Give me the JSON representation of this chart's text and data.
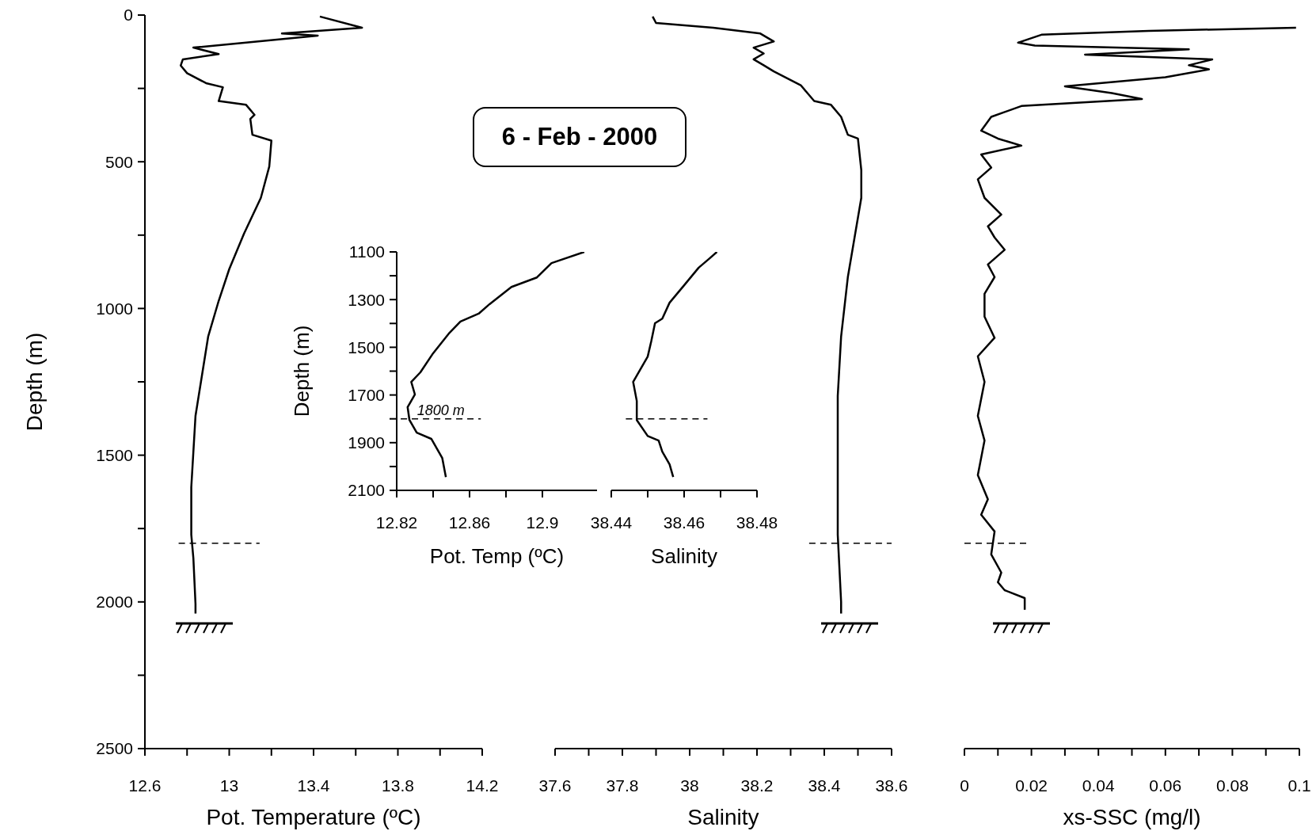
{
  "chart_data": [
    {
      "type": "line",
      "xlabel": "Pot. Temperature (ºC)",
      "ylabel": "Depth (m)",
      "xlim": [
        12.6,
        14.2
      ],
      "xticks": [
        12.6,
        {
          "value": 12.8,
          "label": null
        },
        13,
        {
          "value": 13.2,
          "label": null
        },
        13.4,
        {
          "value": 13.6,
          "label": null
        },
        13.8,
        {
          "value": 14,
          "label": null
        },
        14.2
      ],
      "ylim": [
        2500,
        0
      ],
      "yticks": [
        0,
        {
          "value": 250,
          "label": null
        },
        500,
        {
          "value": 750,
          "label": null
        },
        1000,
        {
          "value": 1250,
          "label": null
        },
        1500,
        {
          "value": 1750,
          "label": null
        },
        2000,
        {
          "value": 2250,
          "label": null
        },
        2500
      ],
      "marker": "none",
      "series": [
        {
          "color": "#000000",
          "x": [
            13.43,
            13.63,
            13.25,
            13.42,
            12.83,
            12.95,
            12.78,
            12.77,
            12.8,
            12.89,
            12.97,
            12.95,
            13.08,
            13.12,
            13.1,
            13.11,
            13.2,
            13.19,
            13.15,
            13.07,
            13.0,
            12.95,
            12.9,
            12.87,
            12.84,
            12.82,
            12.82,
            12.83,
            12.84,
            12.84
          ],
          "values": [
            5,
            43,
            63,
            70,
            111,
            133,
            151,
            172,
            198,
            232,
            246,
            293,
            306,
            340,
            354,
            408,
            428,
            516,
            623,
            745,
            866,
            974,
            1096,
            1231,
            1366,
            1609,
            1771,
            1852,
            2007,
            2040
          ]
        }
      ],
      "ref_lines": [
        {
          "axis": "y",
          "value": 1800,
          "line_style": "dashed"
        }
      ]
    },
    {
      "type": "line",
      "title": "6 - Feb - 2000",
      "xlabel": "Salinity",
      "xlim": [
        37.6,
        38.6
      ],
      "xticks": [
        37.6,
        {
          "value": 37.7,
          "label": null
        },
        37.8,
        {
          "value": 37.9,
          "label": null
        },
        38,
        {
          "value": 38.1,
          "label": null
        },
        38.2,
        {
          "value": 38.3,
          "label": null
        },
        38.4,
        {
          "value": 38.5,
          "label": null
        },
        38.6
      ],
      "ylim": [
        2500,
        0
      ],
      "tick_labels": "x",
      "marker": "none",
      "series": [
        {
          "color": "#000000",
          "x": [
            37.89,
            37.9,
            38.07,
            38.21,
            38.25,
            38.19,
            38.22,
            38.19,
            38.22,
            38.25,
            38.33,
            38.37,
            38.42,
            38.45,
            38.47,
            38.5,
            38.51,
            38.51,
            38.49,
            38.47,
            38.45,
            38.44,
            38.44,
            38.44,
            38.45,
            38.45
          ],
          "values": [
            5,
            27,
            43,
            63,
            90,
            111,
            131,
            151,
            171,
            192,
            239,
            293,
            306,
            347,
            408,
            421,
            529,
            623,
            758,
            893,
            1096,
            1298,
            1568,
            1771,
            2000,
            2040
          ]
        }
      ],
      "ref_lines": [
        {
          "axis": "y",
          "value": 1800,
          "line_style": "dashed"
        }
      ]
    },
    {
      "type": "line",
      "xlabel": "xs-SSC (mg/l)",
      "xlim": [
        0,
        0.1
      ],
      "xticks": [
        0,
        {
          "value": 0.01,
          "label": null
        },
        0.02,
        {
          "value": 0.03,
          "label": null
        },
        0.04,
        {
          "value": 0.05,
          "label": null
        },
        0.06,
        {
          "value": 0.07,
          "label": null
        },
        0.08,
        {
          "value": 0.09,
          "label": null
        },
        0.1
      ],
      "ylim": [
        2500,
        0
      ],
      "tick_labels": "x",
      "marker": "none",
      "series": [
        {
          "color": "#000000",
          "x": [
            0.099,
            0.055,
            0.023,
            0.016,
            0.021,
            0.067,
            0.036,
            0.074,
            0.067,
            0.073,
            0.06,
            0.03,
            0.044,
            0.053,
            0.017,
            0.008,
            0.005,
            0.01,
            0.017,
            0.005,
            0.008,
            0.004,
            0.006,
            0.011,
            0.007,
            0.009,
            0.012,
            0.007,
            0.009,
            0.006,
            0.006,
            0.009,
            0.004,
            0.006,
            0.004,
            0.006,
            0.004,
            0.007,
            0.005,
            0.009,
            0.008,
            0.011,
            0.01,
            0.012,
            0.018,
            0.018
          ],
          "values": [
            43,
            54,
            67,
            94,
            104,
            117,
            135,
            151,
            171,
            185,
            212,
            243,
            266,
            286,
            310,
            347,
            394,
            421,
            445,
            475,
            520,
            560,
            623,
            680,
            720,
            758,
            800,
            850,
            893,
            950,
            1028,
            1100,
            1163,
            1250,
            1366,
            1450,
            1568,
            1650,
            1703,
            1760,
            1838,
            1900,
            1933,
            1960,
            1987,
            2027
          ]
        }
      ],
      "ref_lines": [
        {
          "axis": "y",
          "value": 1800,
          "line_style": "dashed"
        }
      ]
    },
    {
      "type": "line",
      "xlabel": "Pot. Temp (ºC)",
      "ylabel": "Depth (m)",
      "xlim": [
        12.82,
        12.93
      ],
      "xticks": [
        12.82,
        {
          "value": 12.84,
          "label": null
        },
        12.86,
        {
          "value": 12.88,
          "label": null
        },
        12.9
      ],
      "ylim": [
        2100,
        1100
      ],
      "yticks": [
        1100,
        {
          "value": 1200,
          "label": null
        },
        1300,
        {
          "value": 1400,
          "label": null
        },
        1500,
        {
          "value": 1600,
          "label": null
        },
        1700,
        {
          "value": 1800,
          "label": null
        },
        1900,
        {
          "value": 2000,
          "label": null
        },
        2100
      ],
      "marker": "none",
      "series": [
        {
          "color": "#000000",
          "x": [
            12.923,
            12.905,
            12.897,
            12.883,
            12.871,
            12.865,
            12.855,
            12.849,
            12.84,
            12.833,
            12.828,
            12.83,
            12.826,
            12.827,
            12.831,
            12.839,
            12.845,
            12.847
          ],
          "values": [
            1100,
            1147,
            1207,
            1247,
            1319,
            1359,
            1392,
            1439,
            1525,
            1605,
            1645,
            1698,
            1751,
            1805,
            1858,
            1884,
            1964,
            2044
          ]
        }
      ],
      "ref_lines": [
        {
          "axis": "y",
          "value": 1800,
          "label": "1800 m",
          "line_style": "dashed"
        }
      ]
    },
    {
      "type": "line",
      "xlabel": "Salinity",
      "xlim": [
        38.44,
        38.48
      ],
      "xticks": [
        38.44,
        {
          "value": 38.45,
          "label": null
        },
        38.46,
        {
          "value": 38.47,
          "label": null
        },
        38.48
      ],
      "ylim": [
        2100,
        1100
      ],
      "tick_labels": "x",
      "marker": "none",
      "series": [
        {
          "color": "#000000",
          "x": [
            38.469,
            38.467,
            38.464,
            38.46,
            38.456,
            38.454,
            38.452,
            38.451,
            38.45,
            38.447,
            38.446,
            38.447,
            38.447,
            38.45,
            38.453,
            38.454,
            38.456,
            38.457
          ],
          "values": [
            1100,
            1127,
            1166,
            1240,
            1313,
            1380,
            1399,
            1473,
            1539,
            1619,
            1645,
            1725,
            1805,
            1872,
            1891,
            1938,
            1991,
            2044
          ]
        }
      ],
      "ref_lines": [
        {
          "axis": "y",
          "value": 1800,
          "line_style": "dashed"
        }
      ]
    }
  ]
}
